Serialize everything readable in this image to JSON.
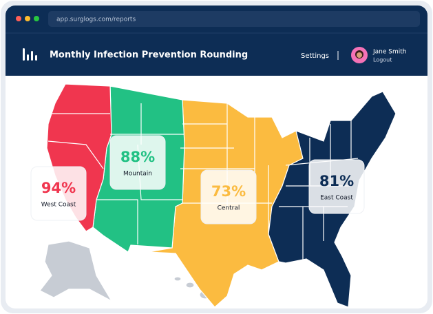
{
  "browser": {
    "url": "app.surglogs.com/reports"
  },
  "header": {
    "title": "Monthly Infection Prevention Rounding",
    "nav": "Settings",
    "user": {
      "name": "Jane Smith",
      "action": "Logout"
    }
  },
  "regions": [
    {
      "value": "94%",
      "label": "West Coast",
      "color": "#f0364f"
    },
    {
      "value": "88%",
      "label": "Mountain",
      "color": "#22c184"
    },
    {
      "value": "73%",
      "label": "Central",
      "color": "#fbbb40"
    },
    {
      "value": "81%",
      "label": "East Coast",
      "color": "#0d2d55"
    }
  ]
}
